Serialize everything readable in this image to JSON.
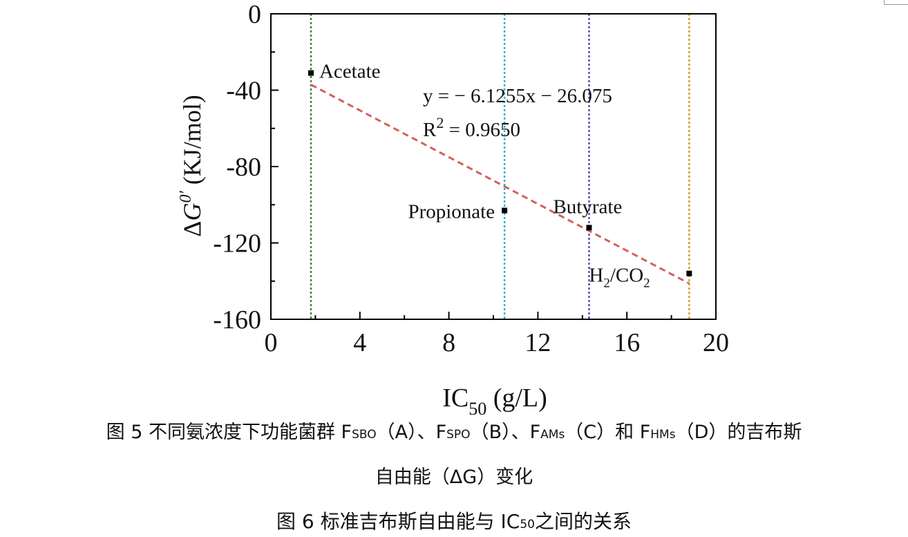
{
  "chart_data": {
    "type": "scatter",
    "ylabel": "ΔG0′ (KJ/mol)",
    "ylabel_parts": {
      "delta": "Δ",
      "var": "G",
      "sup": "0′",
      "units": "(KJ/mol)"
    },
    "xlabel_parts": {
      "main": "IC",
      "sub": "50",
      "units": "(g/L)"
    },
    "xlim": [
      0,
      20
    ],
    "ylim": [
      -160,
      0
    ],
    "xticks": [
      "0",
      "4",
      "8",
      "12",
      "16",
      "20"
    ],
    "yticks": [
      "0",
      "-40",
      "-80",
      "-120",
      "-160"
    ],
    "points": [
      {
        "label": "Acetate",
        "x": 1.8,
        "y": -31
      },
      {
        "label": "Propionate",
        "x": 10.5,
        "y": -103
      },
      {
        "label": "Butyrate",
        "x": 14.3,
        "y": -112
      },
      {
        "label_main": "H",
        "label_sub1": "2",
        "label_mid": "/CO",
        "label_sub2": "2",
        "x": 18.8,
        "y": -136
      }
    ],
    "vertical_lines": [
      {
        "x": 1.8,
        "color": "#2e8b3a"
      },
      {
        "x": 10.5,
        "color": "#2bb3d1"
      },
      {
        "x": 14.3,
        "color": "#4a55b0"
      },
      {
        "x": 18.8,
        "color": "#d4a02a"
      }
    ],
    "fit_line": {
      "x_start": 1.8,
      "x_end": 18.8,
      "slope": -6.1255,
      "intercept": -26.075,
      "color": "#d2615a"
    },
    "equation": "y = − 6.1255x − 26.075",
    "r2_prefix": "R",
    "r2_sup": "2",
    "r2_value": " = 0.9650",
    "grid": false
  },
  "captions": {
    "fig5_line1": {
      "prefix": "图 5 不同氨浓度下功能菌群 F",
      "s1": "SBO",
      "t1": "（A）、F",
      "s2": "SPO",
      "t2": "（B）、F",
      "s3": "AMs",
      "t3": "（C）和 F",
      "s4": "HMs",
      "t4": "（D）的吉布斯"
    },
    "fig5_line2": "自由能（ΔG）变化",
    "fig6": {
      "prefix": "图 6 标准吉布斯自由能与 IC",
      "sub": "50",
      "suffix": "之间的关系"
    }
  }
}
